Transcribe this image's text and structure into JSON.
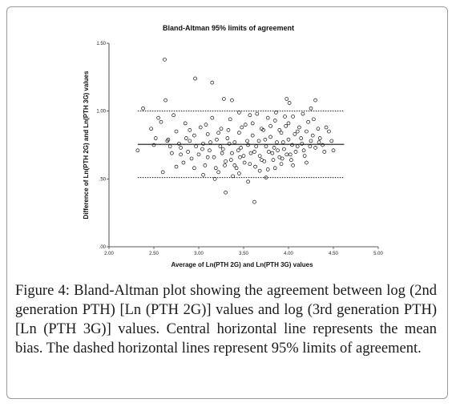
{
  "chart_data": {
    "type": "scatter",
    "title": "Bland-Altman 95% limits of agreement",
    "xlabel": "Average of Ln(PTH 2G) and Ln(PTH 3G) values",
    "ylabel": "Difference of Ln(PTH 2G) and Ln(PTH 3G) values",
    "xlim": [
      2.0,
      5.0
    ],
    "ylim": [
      0.0,
      1.5
    ],
    "x_ticks": [
      2.0,
      2.5,
      3.0,
      3.5,
      4.0,
      4.5,
      5.0
    ],
    "x_tick_labels": [
      "2.00",
      "2.50",
      "3.00",
      "3.50",
      "4.00",
      "4.50",
      "5.00"
    ],
    "y_ticks": [
      0.0,
      0.5,
      1.0,
      1.5
    ],
    "y_tick_labels": [
      ".00",
      ".50",
      "1.00",
      "1.50"
    ],
    "grid": false,
    "mean_bias": 0.755,
    "upper_loa": 1.0,
    "lower_loa": 0.51,
    "points": [
      [
        2.62,
        1.38
      ],
      [
        2.96,
        1.24
      ],
      [
        3.15,
        1.21
      ],
      [
        3.28,
        1.09
      ],
      [
        3.37,
        1.08
      ],
      [
        3.98,
        1.09
      ],
      [
        4.01,
        1.06
      ],
      [
        4.25,
        1.02
      ],
      [
        4.3,
        1.08
      ],
      [
        2.32,
        0.71
      ],
      [
        2.38,
        1.02
      ],
      [
        2.47,
        0.87
      ],
      [
        2.52,
        0.8
      ],
      [
        2.55,
        0.95
      ],
      [
        2.58,
        0.92
      ],
      [
        2.63,
        1.08
      ],
      [
        2.65,
        0.78
      ],
      [
        2.68,
        0.74
      ],
      [
        2.7,
        0.69
      ],
      [
        2.72,
        0.97
      ],
      [
        2.75,
        0.85
      ],
      [
        2.78,
        0.76
      ],
      [
        2.8,
        0.73
      ],
      [
        2.83,
        0.62
      ],
      [
        2.85,
        0.91
      ],
      [
        2.88,
        0.7
      ],
      [
        2.9,
        0.78
      ],
      [
        2.92,
        0.65
      ],
      [
        2.95,
        0.82
      ],
      [
        2.97,
        0.74
      ],
      [
        3.0,
        0.68
      ],
      [
        3.02,
        0.88
      ],
      [
        3.05,
        0.76
      ],
      [
        3.07,
        0.6
      ],
      [
        3.1,
        0.83
      ],
      [
        3.12,
        0.71
      ],
      [
        3.15,
        0.95
      ],
      [
        3.17,
        0.66
      ],
      [
        3.2,
        0.79
      ],
      [
        3.22,
        0.55
      ],
      [
        3.25,
        0.87
      ],
      [
        3.27,
        0.72
      ],
      [
        3.3,
        0.63
      ],
      [
        3.32,
        0.8
      ],
      [
        3.35,
        0.94
      ],
      [
        3.37,
        0.69
      ],
      [
        3.4,
        0.77
      ],
      [
        3.42,
        0.58
      ],
      [
        3.45,
        0.84
      ],
      [
        3.47,
        0.73
      ],
      [
        3.5,
        0.67
      ],
      [
        3.52,
        0.9
      ],
      [
        3.55,
        0.75
      ],
      [
        3.57,
        0.61
      ],
      [
        3.6,
        0.82
      ],
      [
        3.62,
        0.7
      ],
      [
        3.65,
        0.98
      ],
      [
        3.67,
        0.78
      ],
      [
        3.7,
        0.64
      ],
      [
        3.72,
        0.86
      ],
      [
        3.75,
        0.74
      ],
      [
        3.77,
        0.57
      ],
      [
        3.8,
        0.81
      ],
      [
        3.82,
        0.69
      ],
      [
        3.85,
        0.93
      ],
      [
        3.87,
        0.77
      ],
      [
        3.9,
        0.66
      ],
      [
        3.92,
        0.84
      ],
      [
        3.95,
        0.72
      ],
      [
        3.97,
        0.89
      ],
      [
        4.0,
        0.79
      ],
      [
        4.02,
        0.68
      ],
      [
        4.05,
        0.96
      ],
      [
        4.07,
        0.83
      ],
      [
        4.1,
        0.74
      ],
      [
        4.12,
        0.88
      ],
      [
        4.15,
        0.76
      ],
      [
        4.17,
        0.71
      ],
      [
        4.2,
        0.85
      ],
      [
        4.22,
        0.92
      ],
      [
        4.25,
        0.78
      ],
      [
        4.27,
        0.82
      ],
      [
        4.3,
        0.73
      ],
      [
        4.33,
        0.87
      ],
      [
        4.35,
        0.8
      ],
      [
        4.38,
        0.75
      ],
      [
        4.4,
        0.7
      ],
      [
        4.45,
        0.85
      ],
      [
        4.48,
        0.78
      ],
      [
        4.5,
        0.71
      ],
      [
        2.6,
        0.55
      ],
      [
        2.75,
        0.59
      ],
      [
        2.95,
        0.58
      ],
      [
        3.05,
        0.53
      ],
      [
        3.18,
        0.5
      ],
      [
        3.3,
        0.4
      ],
      [
        3.38,
        0.52
      ],
      [
        3.45,
        0.54
      ],
      [
        3.55,
        0.48
      ],
      [
        3.62,
        0.33
      ],
      [
        3.68,
        0.56
      ],
      [
        3.75,
        0.51
      ],
      [
        3.85,
        0.58
      ],
      [
        3.92,
        0.61
      ],
      [
        4.05,
        0.6
      ],
      [
        4.2,
        0.62
      ],
      [
        2.5,
        0.75
      ],
      [
        2.66,
        0.79
      ],
      [
        2.86,
        0.8
      ],
      [
        3.04,
        0.72
      ],
      [
        3.13,
        0.77
      ],
      [
        3.24,
        0.74
      ],
      [
        3.34,
        0.76
      ],
      [
        3.44,
        0.71
      ],
      [
        3.54,
        0.78
      ],
      [
        3.64,
        0.74
      ],
      [
        3.74,
        0.79
      ],
      [
        3.84,
        0.73
      ],
      [
        3.94,
        0.77
      ],
      [
        4.04,
        0.75
      ],
      [
        4.14,
        0.8
      ],
      [
        4.24,
        0.74
      ],
      [
        4.34,
        0.77
      ],
      [
        2.8,
        0.68
      ],
      [
        3.1,
        0.66
      ],
      [
        3.26,
        0.69
      ],
      [
        3.36,
        0.64
      ],
      [
        3.46,
        0.66
      ],
      [
        3.58,
        0.69
      ],
      [
        3.68,
        0.67
      ],
      [
        3.78,
        0.7
      ],
      [
        3.88,
        0.71
      ],
      [
        3.98,
        0.68
      ],
      [
        4.08,
        0.7
      ],
      [
        4.18,
        0.67
      ],
      [
        2.9,
        0.86
      ],
      [
        3.08,
        0.9
      ],
      [
        3.22,
        0.84
      ],
      [
        3.33,
        0.86
      ],
      [
        3.48,
        0.88
      ],
      [
        3.6,
        0.91
      ],
      [
        3.7,
        0.87
      ],
      [
        3.8,
        0.89
      ],
      [
        3.9,
        0.86
      ],
      [
        4.0,
        0.91
      ],
      [
        4.1,
        0.85
      ],
      [
        4.28,
        0.94
      ],
      [
        4.42,
        0.88
      ],
      [
        3.19,
        0.58
      ],
      [
        3.29,
        0.6
      ],
      [
        3.4,
        0.6
      ],
      [
        3.51,
        0.62
      ],
      [
        3.63,
        0.59
      ],
      [
        3.73,
        0.63
      ],
      [
        3.83,
        0.64
      ],
      [
        3.93,
        0.65
      ],
      [
        4.03,
        0.64
      ],
      [
        3.57,
        0.97
      ],
      [
        3.77,
        0.95
      ],
      [
        3.86,
        0.99
      ],
      [
        3.96,
        0.96
      ],
      [
        4.16,
        0.98
      ],
      [
        3.45,
        0.99
      ]
    ]
  },
  "caption": {
    "label": "Figure 4:",
    "text": " Bland-Altman plot showing the agreement between log (2nd generation PTH) [Ln (PTH 2G)] values and log (3rd generation PTH) [Ln (PTH 3G)] values. Central horizontal line represents the mean bias. The dashed horizontal lines represent 95% limits of agreement."
  }
}
